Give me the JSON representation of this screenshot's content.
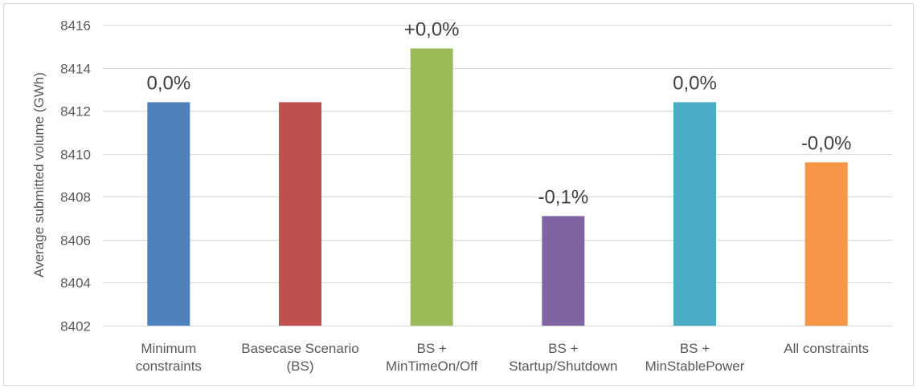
{
  "chart_data": {
    "type": "bar",
    "title": "",
    "xlabel": "",
    "ylabel": "Average submitted volume (GWh)",
    "ylim": [
      8402,
      8416
    ],
    "yticks": [
      8402,
      8404,
      8406,
      8408,
      8410,
      8412,
      8414,
      8416
    ],
    "grid": true,
    "legend": "none",
    "categories": [
      [
        "Minimum",
        "constraints"
      ],
      [
        "Basecase Scenario",
        "(BS)"
      ],
      [
        "BS +",
        "MinTimeOn/Off"
      ],
      [
        "BS +",
        "Startup/Shutdown"
      ],
      [
        "BS +",
        "MinStablePower"
      ],
      [
        "All constraints"
      ]
    ],
    "values": [
      8412.4,
      8412.4,
      8414.9,
      8407.1,
      8412.4,
      8409.6
    ],
    "data_labels": [
      "0,0%",
      "",
      "+0,0%",
      "-0,1%",
      "0,0%",
      "-0,0%"
    ],
    "colors": [
      "#4f81bd",
      "#c0504d",
      "#9bbb59",
      "#8064a2",
      "#4bacc6",
      "#f79646"
    ]
  }
}
